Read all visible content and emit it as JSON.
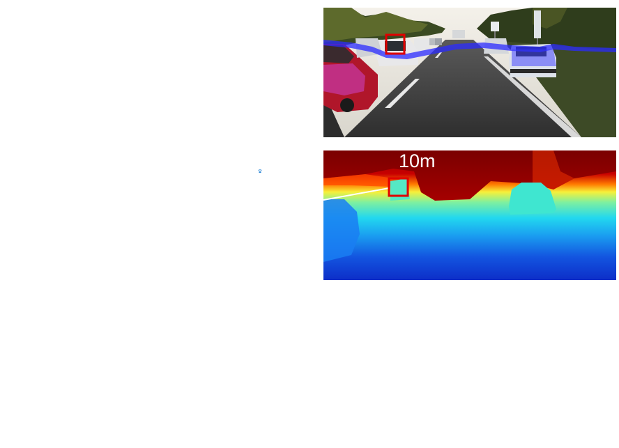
{
  "depth_panel": {
    "distance_label": "10m"
  },
  "colors": {
    "highlight_box": "#e00000",
    "lane_overlay": "#2b2bff",
    "connector_line": "#ffffff",
    "depth_far": "#8b0000",
    "depth_near": "#1030d0",
    "small_marker": "#2a86d6"
  }
}
